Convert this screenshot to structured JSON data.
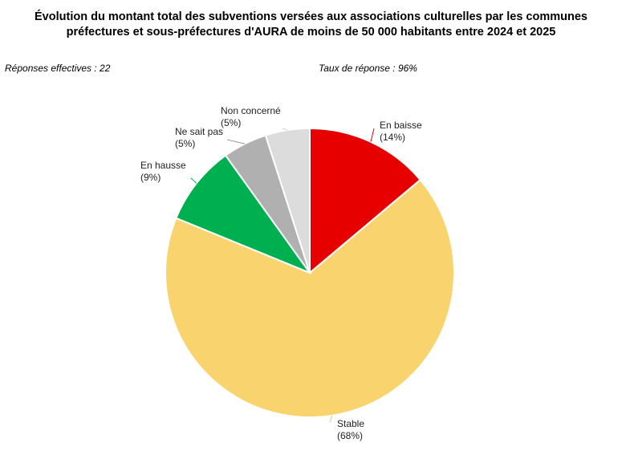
{
  "header": {
    "title_line1": "Évolution du montant total des subventions versées aux associations culturelles par les communes",
    "title_line2": "préfectures et sous-préfectures d'AURA de moins de 50 000 habitants entre 2024 et 2025",
    "responses_label": "Réponses effectives : 22",
    "rate_label": "Taux de réponse : 96%"
  },
  "chart_data": {
    "type": "pie",
    "title": "Évolution du montant total des subventions versées aux associations culturelles par les communes préfectures et sous-préfectures d'AURA de moins de 50 000 habitants entre 2024 et 2025",
    "start": "top, clockwise",
    "slices": [
      {
        "label": "En baisse",
        "value": 14,
        "value_label": "(14%)",
        "color": "#e60000"
      },
      {
        "label": "Stable",
        "value": 68,
        "value_label": "(68%)",
        "color": "#f9d46e"
      },
      {
        "label": "En hausse",
        "value": 9,
        "value_label": "(9%)",
        "color": "#00b050"
      },
      {
        "label": "Ne sait pas",
        "value": 5,
        "value_label": "(5%)",
        "color": "#b0b0b0"
      },
      {
        "label": "Non concerné",
        "value": 5,
        "value_label": "(5%)",
        "color": "#dcdcdc"
      }
    ]
  }
}
